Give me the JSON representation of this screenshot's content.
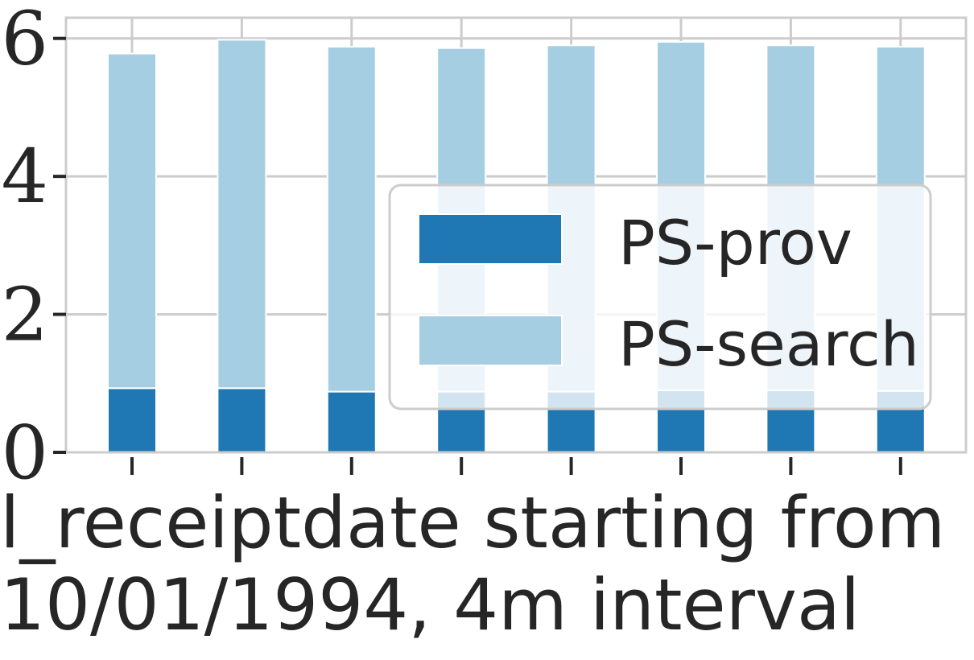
{
  "chart_data": {
    "type": "bar",
    "stacked": true,
    "title": "",
    "xlabel": "l_receiptdate starting from 10/01/1994, 4m interval",
    "xlabel_lines": [
      "l_receiptdate starting from",
      "10/01/1994, 4m interval"
    ],
    "ylabel": "",
    "ylim": [
      0,
      6.3
    ],
    "yticks": [
      0,
      2,
      4,
      6
    ],
    "ytick_labels": [
      "0",
      "2",
      "4",
      "6"
    ],
    "x_tick_count": 8,
    "grid": true,
    "legend_position": "center-right",
    "series": [
      {
        "name": "PS-prov",
        "color": "#1f78b4",
        "values": [
          0.93,
          0.93,
          0.88,
          0.88,
          0.88,
          0.9,
          0.9,
          0.89
        ]
      },
      {
        "name": "PS-search",
        "color": "#a6cee3",
        "values": [
          4.85,
          5.05,
          5.0,
          4.98,
          5.02,
          5.05,
          5.0,
          4.99
        ]
      }
    ]
  }
}
